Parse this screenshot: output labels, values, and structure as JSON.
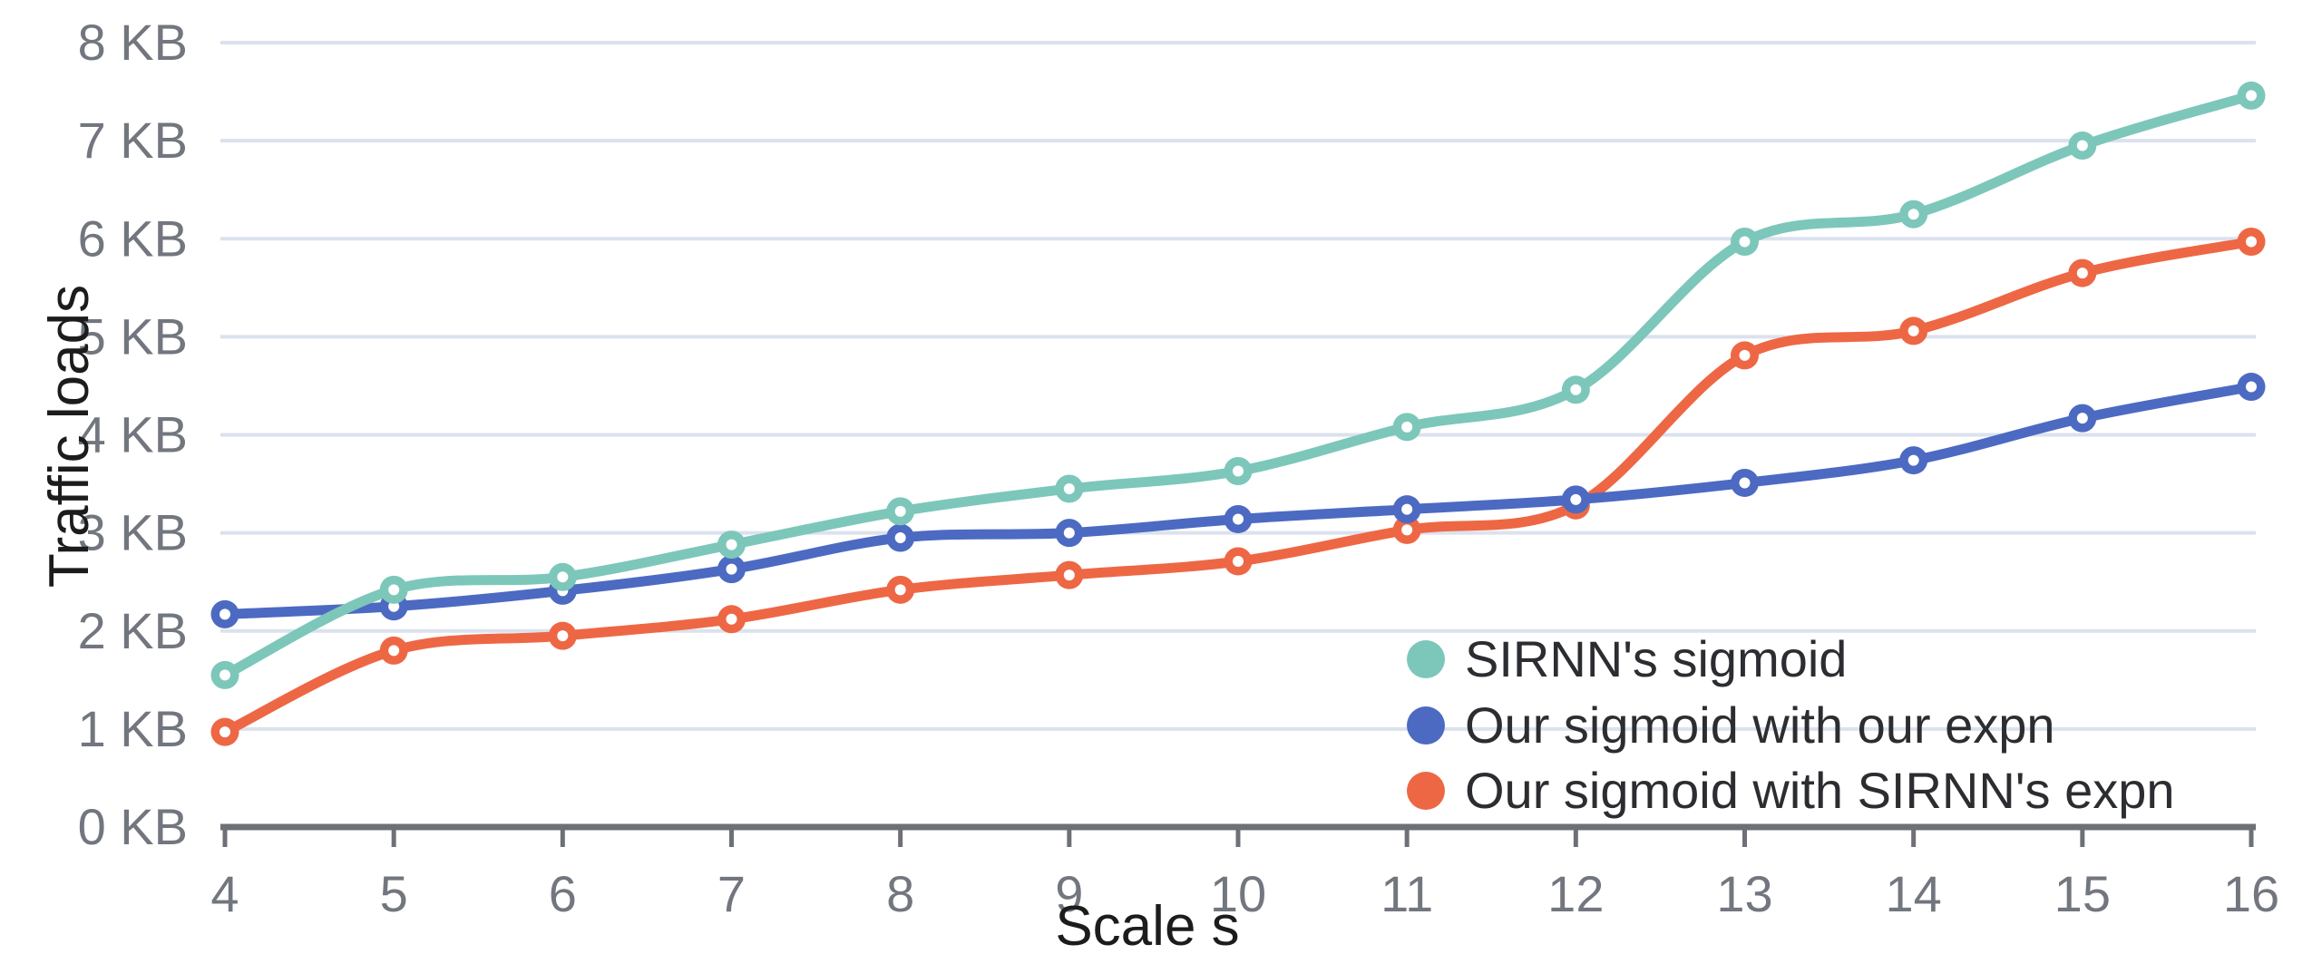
{
  "chart_data": {
    "type": "line",
    "title": "",
    "xlabel": "Scale s",
    "ylabel": "Traffic loads",
    "x": [
      4,
      5,
      6,
      7,
      8,
      9,
      10,
      11,
      12,
      13,
      14,
      15,
      16
    ],
    "x_tick_labels": [
      "4",
      "5",
      "6",
      "7",
      "8",
      "9",
      "10",
      "11",
      "12",
      "13",
      "14",
      "15",
      "16"
    ],
    "y_tick_labels": [
      "0 KB",
      "1 KB",
      "2 KB",
      "3 KB",
      "4 KB",
      "5 KB",
      "6 KB",
      "7 KB",
      "8 KB"
    ],
    "y_tick_values": [
      0,
      1,
      2,
      3,
      4,
      5,
      6,
      7,
      8
    ],
    "xlim": [
      4,
      16
    ],
    "ylim": [
      0,
      8
    ],
    "unit": "KB",
    "grid": "horizontal gridlines at every 1 KB",
    "legend_position": "inside-bottom-right",
    "series": [
      {
        "name": "SIRNN's sigmoid",
        "color": "#7CC7BA",
        "values": [
          1.55,
          2.42,
          2.55,
          2.88,
          3.22,
          3.45,
          3.63,
          4.08,
          4.46,
          5.97,
          6.25,
          6.95,
          7.46
        ]
      },
      {
        "name": "Our sigmoid with our expn",
        "color": "#4C6AC2",
        "values": [
          2.17,
          2.25,
          2.41,
          2.63,
          2.95,
          3.0,
          3.14,
          3.24,
          3.34,
          3.51,
          3.74,
          4.17,
          4.49
        ]
      },
      {
        "name": "Our sigmoid with SIRNN's expn",
        "color": "#EE6744",
        "values": [
          0.97,
          1.8,
          1.95,
          2.12,
          2.42,
          2.57,
          2.71,
          3.03,
          3.28,
          4.81,
          5.06,
          5.65,
          5.97
        ]
      }
    ]
  },
  "colors": {
    "background": "#ffffff",
    "axis": "#6d7076",
    "gridline": "#dce1ee",
    "tick_label": "#72767e",
    "axis_label": "#1c1c1c",
    "legend_text": "#2b2d31",
    "marker_hole": "#ffffff"
  }
}
